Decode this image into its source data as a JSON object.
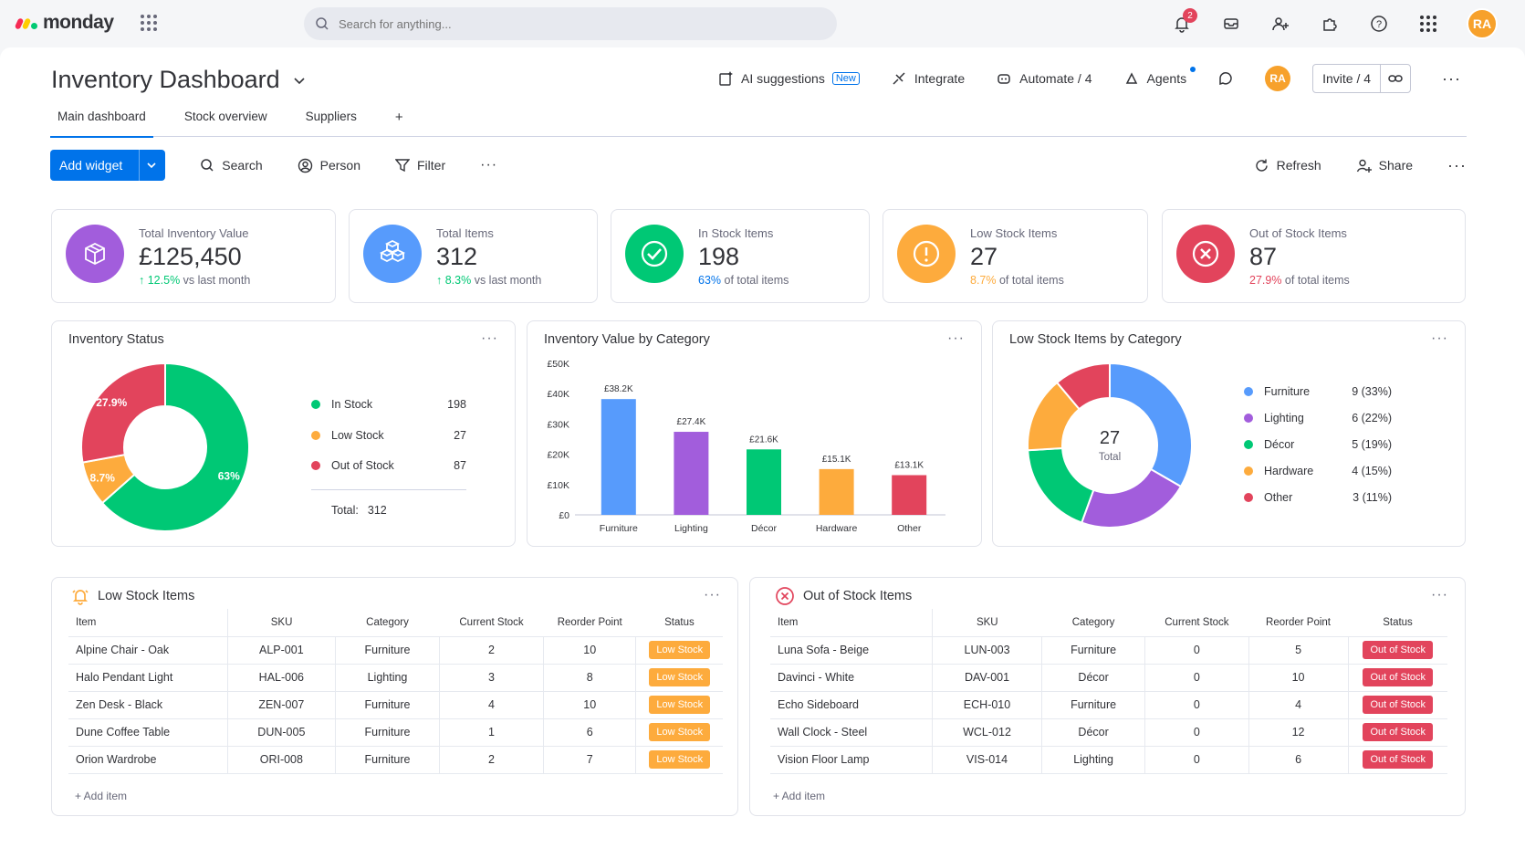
{
  "app": {
    "name": "monday"
  },
  "search": {
    "placeholder": "Search for anything..."
  },
  "topbar": {
    "notifications_count": "2",
    "avatar": "RA"
  },
  "board": {
    "title": "Inventory Dashboard",
    "actions": {
      "ai_suggestions": "AI suggestions",
      "new_tag": "New",
      "integrate": "Integrate",
      "automate": "Automate / 4",
      "agents": "Agents",
      "avatar": "RA",
      "invite": "Invite / 4"
    },
    "tabs": [
      {
        "label": "Main dashboard"
      },
      {
        "label": "Stock overview"
      },
      {
        "label": "Suppliers"
      },
      {
        "label": "+"
      }
    ]
  },
  "toolbar": {
    "add_widget": "Add widget",
    "search": "Search",
    "person": "Person",
    "filter": "Filter",
    "refresh": "Refresh",
    "share": "Share"
  },
  "kpis": [
    {
      "label": "Total Inventory Value",
      "value": "£125,450",
      "sub_highlight": "12.5%",
      "sub_text": " vs last month",
      "color": "#a25ddc",
      "sub_color": "#00c875",
      "arrow": "↑ ",
      "icon": "package-icon"
    },
    {
      "label": "Total Items",
      "value": "312",
      "sub_highlight": "8.3%",
      "sub_text": " vs last month",
      "color": "#579bfc",
      "sub_color": "#00c875",
      "arrow": "↑ ",
      "icon": "boxes-icon"
    },
    {
      "label": "In Stock Items",
      "value": "198",
      "sub_highlight": "63%",
      "sub_text": " of total items",
      "color": "#00c875",
      "sub_color": "#0073ea",
      "arrow": "",
      "icon": "check-circle-icon"
    },
    {
      "label": "Low Stock Items",
      "value": "27",
      "sub_highlight": "8.7%",
      "sub_text": " of total items",
      "color": "#fdab3d",
      "sub_color": "#fdab3d",
      "arrow": "",
      "icon": "alert-icon"
    },
    {
      "label": "Out of Stock Items",
      "value": "87",
      "sub_highlight": "27.9%",
      "sub_text": " of total items",
      "color": "#e2445c",
      "sub_color": "#e2445c",
      "arrow": "",
      "icon": "x-circle-icon"
    }
  ],
  "inventory_status": {
    "title": "Inventory Status",
    "legend": [
      {
        "label": "In Stock",
        "value": "198",
        "color": "#00c875"
      },
      {
        "label": "Low Stock",
        "value": "27",
        "color": "#fdab3d"
      },
      {
        "label": "Out of Stock",
        "value": "87",
        "color": "#e2445c"
      }
    ],
    "total_label": "Total:",
    "total_value": "312"
  },
  "value_by_category": {
    "title": "Inventory Value by Category"
  },
  "low_by_category": {
    "title": "Low Stock Items by Category",
    "center_value": "27",
    "center_label": "Total",
    "legend": [
      {
        "label": "Furniture",
        "value": "9 (33%)",
        "color": "#579bfc"
      },
      {
        "label": "Lighting",
        "value": "6 (22%)",
        "color": "#a25ddc"
      },
      {
        "label": "Décor",
        "value": "5 (19%)",
        "color": "#00c875"
      },
      {
        "label": "Hardware",
        "value": "4 (15%)",
        "color": "#fdab3d"
      },
      {
        "label": "Other",
        "value": "3 (11%)",
        "color": "#e2445c"
      }
    ]
  },
  "chart_data": [
    {
      "type": "pie",
      "title": "Inventory Status",
      "categories": [
        "In Stock",
        "Low Stock",
        "Out of Stock"
      ],
      "values": [
        198,
        27,
        87
      ],
      "labels": [
        "63%",
        "8.7%",
        "27.9%"
      ],
      "colors": [
        "#00c875",
        "#fdab3d",
        "#e2445c"
      ]
    },
    {
      "type": "bar",
      "title": "Inventory Value by Category",
      "categories": [
        "Furniture",
        "Lighting",
        "Décor",
        "Hardware",
        "Other"
      ],
      "values": [
        38.2,
        27.4,
        21.6,
        15.1,
        13.1
      ],
      "data_labels": [
        "£38.2K",
        "£27.4K",
        "£21.6K",
        "£15.1K",
        "£13.1K"
      ],
      "colors": [
        "#579bfc",
        "#a25ddc",
        "#00c875",
        "#fdab3d",
        "#e2445c"
      ],
      "yticks": [
        "£0",
        "£10K",
        "£20K",
        "£30K",
        "£40K",
        "£50K"
      ],
      "ylim": [
        0,
        50
      ]
    },
    {
      "type": "pie",
      "title": "Low Stock Items by Category",
      "categories": [
        "Furniture",
        "Lighting",
        "Décor",
        "Hardware",
        "Other"
      ],
      "values": [
        9,
        6,
        5,
        4,
        3
      ],
      "colors": [
        "#579bfc",
        "#a25ddc",
        "#00c875",
        "#fdab3d",
        "#e2445c"
      ]
    }
  ],
  "low_stock": {
    "title": "Low Stock Items",
    "columns": [
      "Item",
      "SKU",
      "Category",
      "Current Stock",
      "Reorder Point",
      "Status"
    ],
    "rows": [
      [
        "Alpine Chair - Oak",
        "ALP-001",
        "Furniture",
        "2",
        "10",
        "Low Stock"
      ],
      [
        "Halo Pendant Light",
        "HAL-006",
        "Lighting",
        "3",
        "8",
        "Low Stock"
      ],
      [
        "Zen Desk - Black",
        "ZEN-007",
        "Furniture",
        "4",
        "10",
        "Low Stock"
      ],
      [
        "Dune Coffee Table",
        "DUN-005",
        "Furniture",
        "1",
        "6",
        "Low Stock"
      ],
      [
        "Orion Wardrobe",
        "ORI-008",
        "Furniture",
        "2",
        "7",
        "Low Stock"
      ]
    ],
    "status_color": "#fdab3d",
    "add_item": "+ Add item"
  },
  "out_of_stock": {
    "title": "Out of Stock Items",
    "columns": [
      "Item",
      "SKU",
      "Category",
      "Current Stock",
      "Reorder Point",
      "Status"
    ],
    "rows": [
      [
        "Luna Sofa - Beige",
        "LUN-003",
        "Furniture",
        "0",
        "5",
        "Out of Stock"
      ],
      [
        "Davinci - White",
        "DAV-001",
        "Décor",
        "0",
        "10",
        "Out of Stock"
      ],
      [
        "Echo Sideboard",
        "ECH-010",
        "Furniture",
        "0",
        "4",
        "Out of Stock"
      ],
      [
        "Wall Clock - Steel",
        "WCL-012",
        "Décor",
        "0",
        "12",
        "Out of Stock"
      ],
      [
        "Vision Floor Lamp",
        "VIS-014",
        "Lighting",
        "0",
        "6",
        "Out of Stock"
      ]
    ],
    "status_color": "#e2445c",
    "add_item": "+ Add item"
  }
}
